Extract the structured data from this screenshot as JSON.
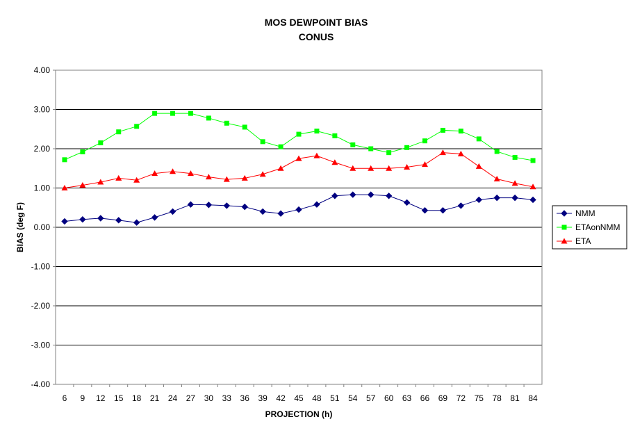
{
  "chart_data": {
    "type": "line",
    "title": "MOS DEWPOINT BIAS",
    "subtitle": "CONUS",
    "xlabel": "PROJECTION (h)",
    "ylabel": "BIAS (deg F)",
    "ylim": [
      -4,
      4
    ],
    "y_step": 1,
    "y_tick_labels": [
      "4.00",
      "3.00",
      "2.00",
      "1.00",
      "0.00",
      "-1.00",
      "-2.00",
      "-3.00",
      "-4.00"
    ],
    "grid": "horizontal",
    "legend_position": "right",
    "categories": [
      "6",
      "9",
      "12",
      "15",
      "18",
      "21",
      "24",
      "27",
      "30",
      "33",
      "36",
      "39",
      "42",
      "45",
      "48",
      "51",
      "54",
      "57",
      "60",
      "63",
      "66",
      "69",
      "72",
      "75",
      "78",
      "81",
      "84"
    ],
    "series": [
      {
        "name": "NMM",
        "color": "#000080",
        "marker": "diamond",
        "values": [
          0.15,
          0.2,
          0.23,
          0.18,
          0.12,
          0.25,
          0.4,
          0.58,
          0.57,
          0.55,
          0.52,
          0.4,
          0.35,
          0.45,
          0.58,
          0.8,
          0.83,
          0.83,
          0.8,
          0.63,
          0.43,
          0.43,
          0.55,
          0.7,
          0.75,
          0.75,
          0.7
        ]
      },
      {
        "name": "ETAonNMM",
        "color": "#00ff00",
        "marker": "square",
        "values": [
          1.72,
          1.92,
          2.15,
          2.43,
          2.57,
          2.9,
          2.9,
          2.9,
          2.78,
          2.65,
          2.55,
          2.18,
          2.05,
          2.37,
          2.45,
          2.33,
          2.1,
          2.0,
          1.9,
          2.03,
          2.2,
          2.47,
          2.45,
          2.25,
          1.93,
          1.78,
          1.7
        ]
      },
      {
        "name": "ETA",
        "color": "#ff0000",
        "marker": "triangle",
        "values": [
          1.0,
          1.07,
          1.15,
          1.25,
          1.2,
          1.37,
          1.42,
          1.37,
          1.28,
          1.22,
          1.25,
          1.35,
          1.5,
          1.75,
          1.82,
          1.65,
          1.5,
          1.5,
          1.5,
          1.53,
          1.6,
          1.9,
          1.87,
          1.55,
          1.23,
          1.12,
          1.03
        ]
      }
    ]
  }
}
